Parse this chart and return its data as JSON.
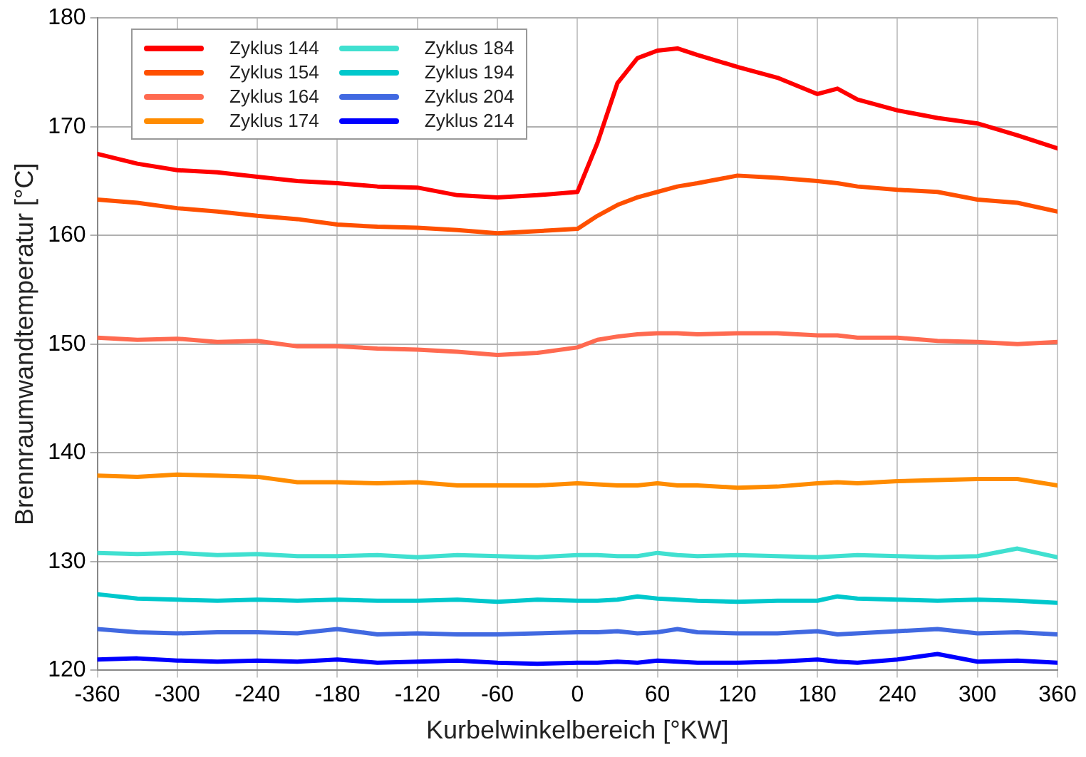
{
  "chart_data": {
    "type": "line",
    "xlabel": "Kurbelwinkelbereich [°KW]",
    "ylabel": "Brennraumwandtemperatur [°C]",
    "x": [
      -360,
      -330,
      -300,
      -270,
      -240,
      -210,
      -180,
      -150,
      -120,
      -90,
      -60,
      -30,
      0,
      15,
      30,
      45,
      60,
      75,
      90,
      120,
      150,
      180,
      195,
      210,
      240,
      270,
      300,
      330,
      360
    ],
    "series": [
      {
        "name": "Zyklus 144",
        "color": "#ff0000",
        "values": [
          167.5,
          166.6,
          166,
          165.8,
          165.4,
          165,
          164.8,
          164.5,
          164.4,
          163.7,
          163.5,
          163.7,
          164,
          168.5,
          174,
          176.3,
          177,
          177.2,
          176.6,
          175.5,
          174.5,
          173,
          173.5,
          172.5,
          171.5,
          170.8,
          170.3,
          169.2,
          168
        ]
      },
      {
        "name": "Zyklus 154",
        "color": "#ff5000",
        "values": [
          163.3,
          163,
          162.5,
          162.2,
          161.8,
          161.5,
          161,
          160.8,
          160.7,
          160.5,
          160.2,
          160.4,
          160.6,
          161.8,
          162.8,
          163.5,
          164,
          164.5,
          164.8,
          165.5,
          165.3,
          165,
          164.8,
          164.5,
          164.2,
          164,
          163.3,
          163,
          162.2
        ]
      },
      {
        "name": "Zyklus 164",
        "color": "#ff6a50",
        "values": [
          150.6,
          150.4,
          150.5,
          150.2,
          150.3,
          149.8,
          149.8,
          149.6,
          149.5,
          149.3,
          149,
          149.2,
          149.7,
          150.4,
          150.7,
          150.9,
          151,
          151,
          150.9,
          151,
          151,
          150.8,
          150.8,
          150.6,
          150.6,
          150.3,
          150.2,
          150,
          150.2
        ]
      },
      {
        "name": "Zyklus 174",
        "color": "#ff8c00",
        "values": [
          137.9,
          137.8,
          138,
          137.9,
          137.8,
          137.3,
          137.3,
          137.2,
          137.3,
          137,
          137,
          137,
          137.2,
          137.1,
          137,
          137,
          137.2,
          137,
          137,
          136.8,
          136.9,
          137.2,
          137.3,
          137.2,
          137.4,
          137.5,
          137.6,
          137.6,
          137
        ]
      },
      {
        "name": "Zyklus 184",
        "color": "#40e0d0",
        "values": [
          130.8,
          130.7,
          130.8,
          130.6,
          130.7,
          130.5,
          130.5,
          130.6,
          130.4,
          130.6,
          130.5,
          130.4,
          130.6,
          130.6,
          130.5,
          130.5,
          130.8,
          130.6,
          130.5,
          130.6,
          130.5,
          130.4,
          130.5,
          130.6,
          130.5,
          130.4,
          130.5,
          131.2,
          130.4
        ]
      },
      {
        "name": "Zyklus 194",
        "color": "#00c8cc",
        "values": [
          127,
          126.6,
          126.5,
          126.4,
          126.5,
          126.4,
          126.5,
          126.4,
          126.4,
          126.5,
          126.3,
          126.5,
          126.4,
          126.4,
          126.5,
          126.8,
          126.6,
          126.5,
          126.4,
          126.3,
          126.4,
          126.4,
          126.8,
          126.6,
          126.5,
          126.4,
          126.5,
          126.4,
          126.2
        ]
      },
      {
        "name": "Zyklus 204",
        "color": "#4169e1",
        "values": [
          123.8,
          123.5,
          123.4,
          123.5,
          123.5,
          123.4,
          123.8,
          123.3,
          123.4,
          123.3,
          123.3,
          123.4,
          123.5,
          123.5,
          123.6,
          123.4,
          123.5,
          123.8,
          123.5,
          123.4,
          123.4,
          123.6,
          123.3,
          123.4,
          123.6,
          123.8,
          123.4,
          123.5,
          123.3
        ]
      },
      {
        "name": "Zyklus 214",
        "color": "#0000ff",
        "values": [
          121,
          121.1,
          120.9,
          120.8,
          120.9,
          120.8,
          121,
          120.7,
          120.8,
          120.9,
          120.7,
          120.6,
          120.7,
          120.7,
          120.8,
          120.7,
          120.9,
          120.8,
          120.7,
          120.7,
          120.8,
          121,
          120.8,
          120.7,
          121,
          121.5,
          120.8,
          120.9,
          120.7
        ]
      }
    ],
    "xlim": [
      -360,
      360
    ],
    "xticks": [
      -360,
      -300,
      -240,
      -180,
      -120,
      -60,
      0,
      60,
      120,
      180,
      240,
      300,
      360
    ],
    "ylim": [
      120,
      180
    ],
    "yticks": [
      120,
      130,
      140,
      150,
      160,
      170,
      180
    ],
    "grid": true,
    "legend": "top left",
    "marker": "none",
    "line_style": "solid"
  }
}
